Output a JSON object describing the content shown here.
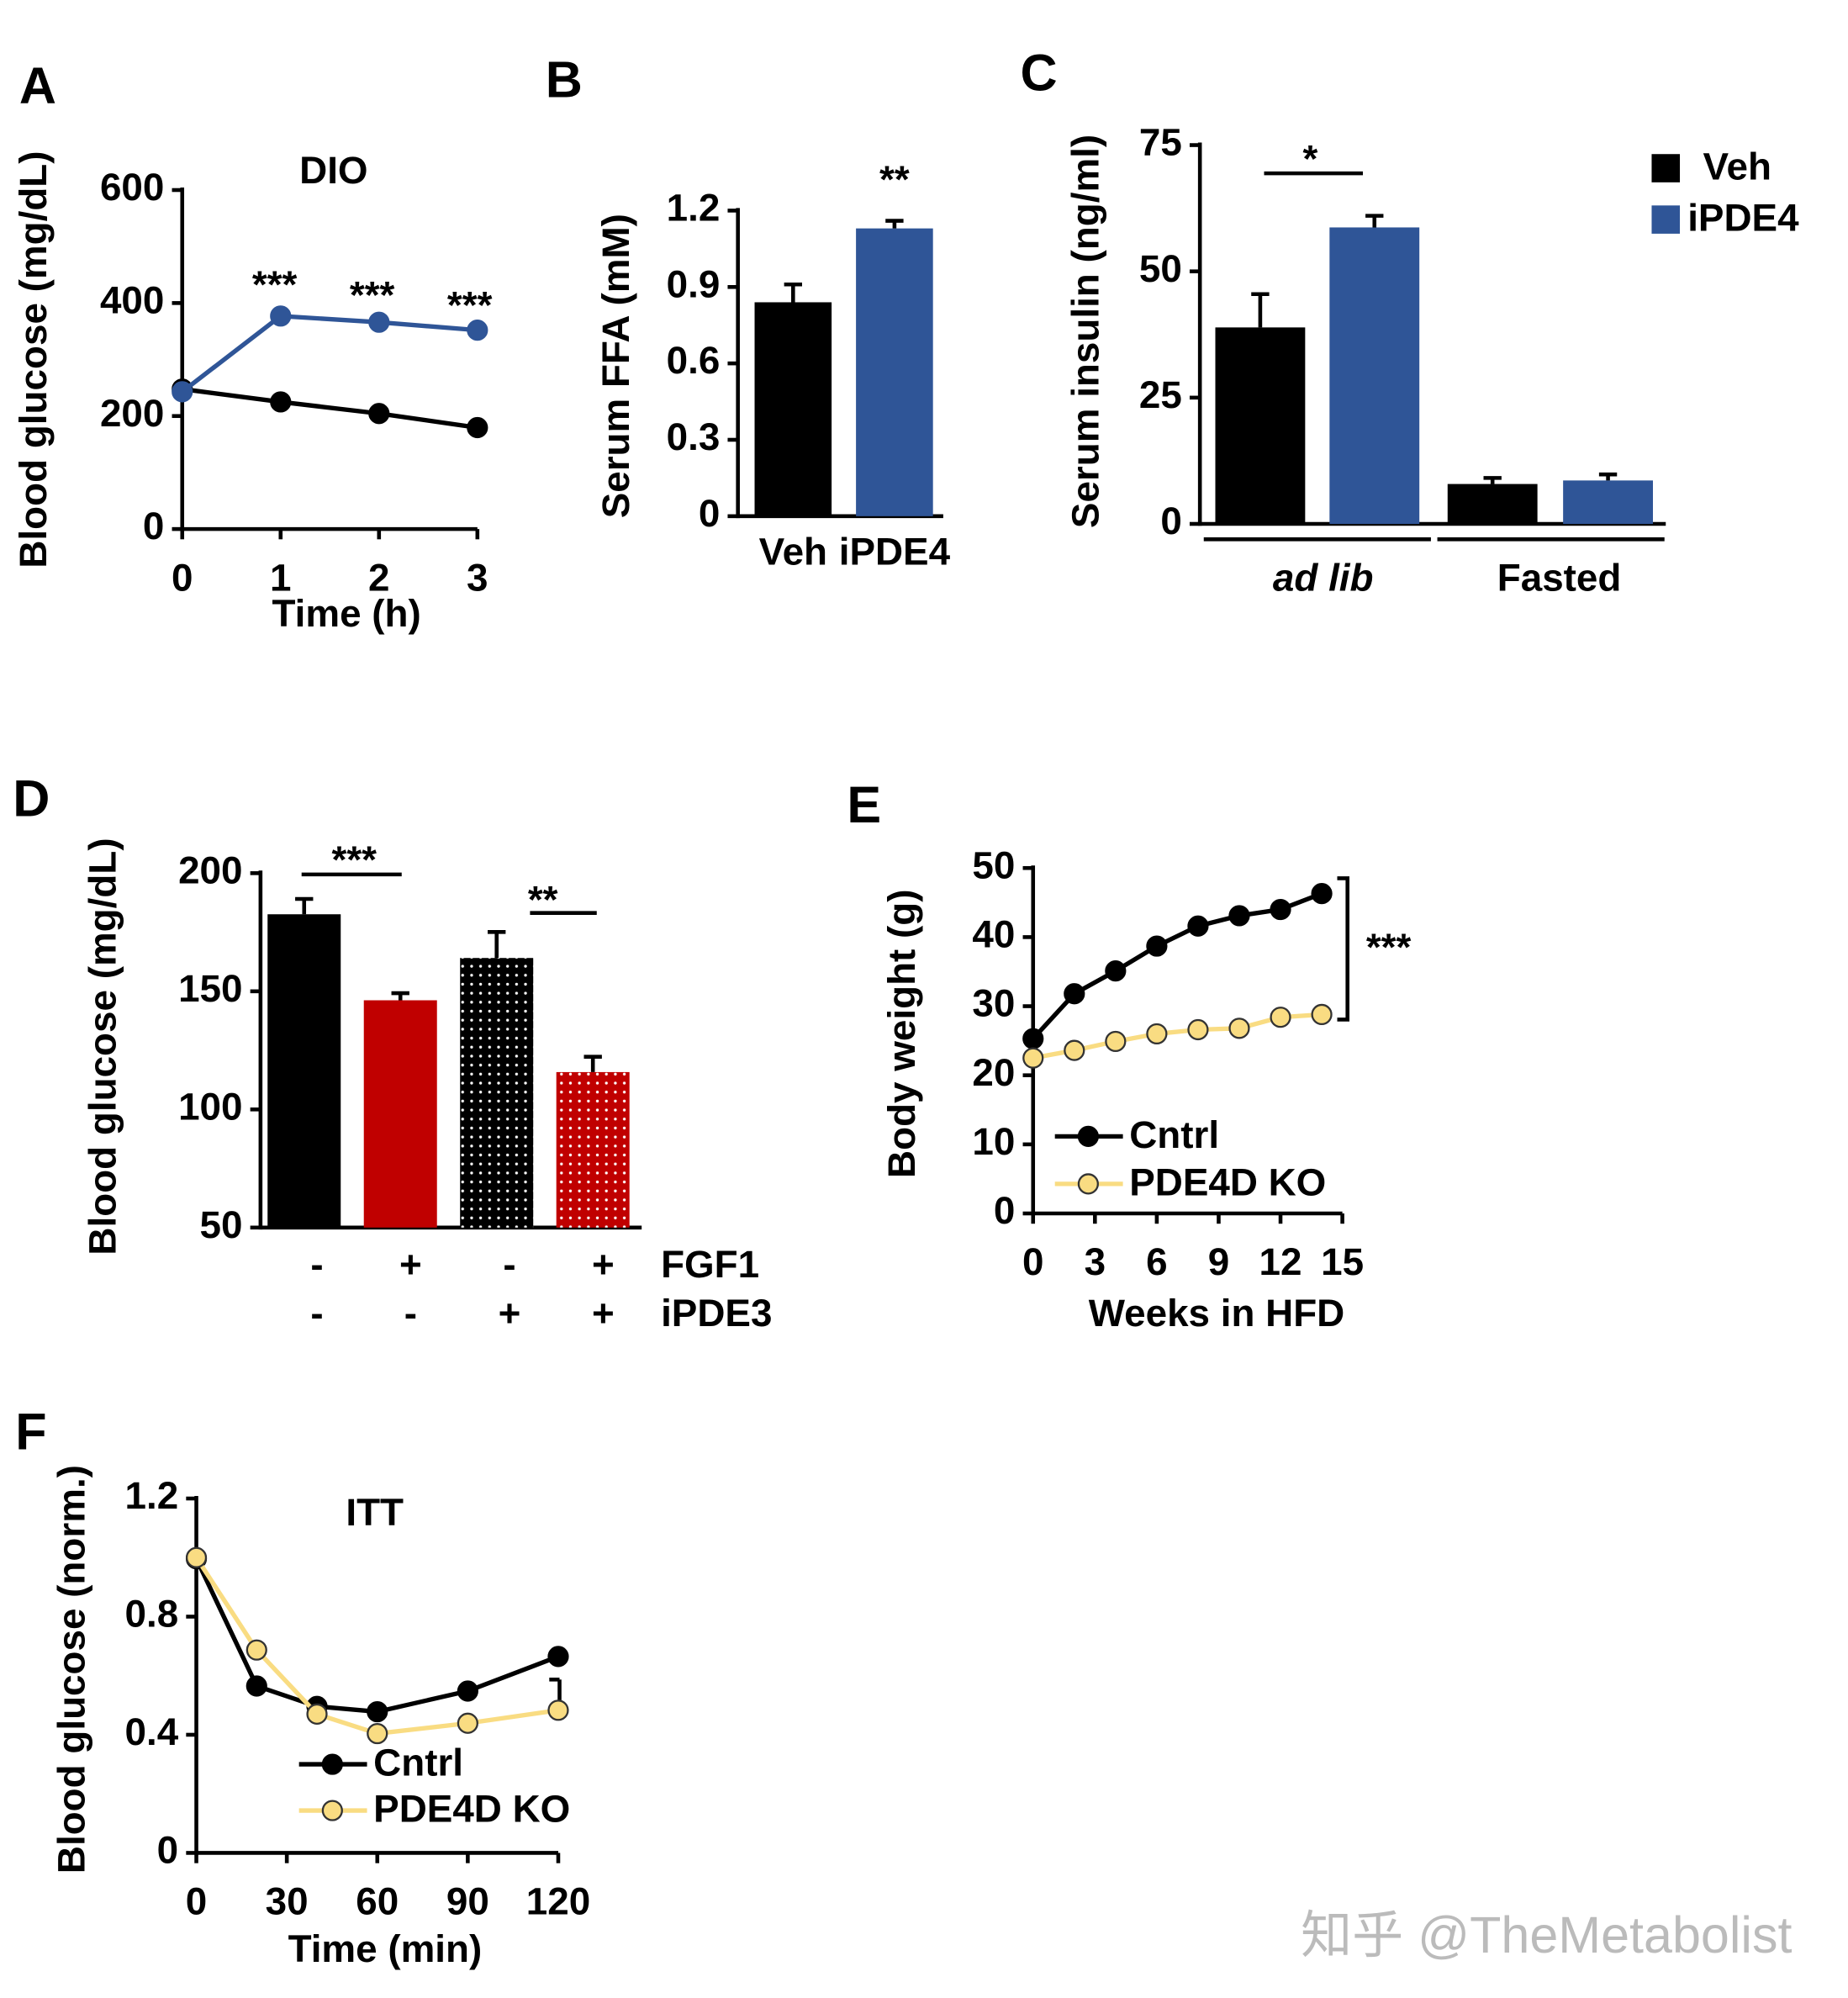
{
  "chart_data": [
    {
      "panel": "A",
      "type": "line",
      "title": "DIO",
      "y_label": "Blood glucose (mg/dL)",
      "x_label": "Time (h)",
      "x": [
        0,
        1,
        2,
        3
      ],
      "series": [
        {
          "color": "#000000",
          "values": [
            247.7,
            225,
            204.5,
            179.5
          ]
        },
        {
          "color": "#2f5597",
          "values": [
            243,
            377,
            366,
            352
          ]
        }
      ],
      "xlim": [
        0,
        3
      ],
      "xticks": [
        0,
        1,
        2,
        3
      ],
      "ylim": [
        0,
        600
      ],
      "yticks": [
        0,
        200,
        400,
        600
      ],
      "annotations": [
        "***",
        "***",
        "***"
      ]
    },
    {
      "panel": "B",
      "type": "bar",
      "y_label": "Serum FFA (mM)",
      "categories": [
        "Veh",
        "iPDE4"
      ],
      "values": [
        0.84,
        1.13
      ],
      "errors": [
        0.07,
        0.03
      ],
      "colors": [
        "#000000",
        "#2f5597"
      ],
      "ylim": [
        0,
        1.2
      ],
      "yticks": [
        0,
        0.3,
        0.6,
        0.9,
        1.2
      ],
      "annotations": [
        "**"
      ]
    },
    {
      "panel": "C",
      "type": "bar",
      "y_label": "Serum insulin (ng/ml)",
      "categories": [
        "ad lib",
        "Fasted"
      ],
      "series": [
        {
          "name": "Veh",
          "color": "#000000",
          "values": [
            38.9,
            7.9
          ],
          "errors": [
            6.6,
            1.2
          ]
        },
        {
          "name": "iPDE4",
          "color": "#2f5597",
          "values": [
            58.7,
            8.6
          ],
          "errors": [
            2.3,
            1.2
          ]
        }
      ],
      "ylim": [
        0,
        75
      ],
      "yticks": [
        0,
        25,
        50,
        75
      ],
      "legend": "upper right",
      "annotations": [
        "*"
      ]
    },
    {
      "panel": "D",
      "type": "bar",
      "y_label": "Blood glucose (mg/dL)",
      "values": [
        182.6,
        146.2,
        164.1,
        115.8
      ],
      "errors": [
        6.5,
        3,
        11,
        6.5
      ],
      "colors": [
        "#000000",
        "#c00000",
        "#000000",
        "#c00000"
      ],
      "dotted": [
        false,
        false,
        true,
        true
      ],
      "conditions": [
        {
          "name": "FGF1",
          "signs": [
            "-",
            "+",
            "-",
            "+"
          ]
        },
        {
          "name": "iPDE3",
          "signs": [
            "-",
            "-",
            "+",
            "+"
          ]
        }
      ],
      "ylim": [
        50,
        200
      ],
      "yticks": [
        50,
        100,
        150,
        200
      ],
      "annotations": [
        "***",
        "**"
      ]
    },
    {
      "panel": "E",
      "type": "line",
      "y_label": "Body weight (g)",
      "x_label": "Weeks in HFD",
      "x": [
        0,
        2,
        4,
        6,
        8,
        10,
        12,
        14
      ],
      "series": [
        {
          "name": "Cntrl",
          "color": "#000000",
          "values": [
            25.3,
            31.8,
            35.1,
            38.7,
            41.6,
            43.1,
            44,
            46.3
          ]
        },
        {
          "name": "PDE4D KO",
          "color": "#f9dc82",
          "values": [
            22.5,
            23.6,
            24.9,
            26,
            26.6,
            26.8,
            28.4,
            28.8
          ]
        }
      ],
      "xlim": [
        0,
        15
      ],
      "xticks": [
        0,
        3,
        6,
        9,
        12,
        15
      ],
      "ylim": [
        0,
        50
      ],
      "yticks": [
        0,
        10,
        20,
        30,
        40,
        50
      ],
      "legend": "lower left",
      "annotations": [
        "***"
      ]
    },
    {
      "panel": "F",
      "type": "line",
      "title": "ITT",
      "y_label": "Blood glucose (norm.)",
      "x_label": "Time (min)",
      "x": [
        0,
        20,
        40,
        60,
        90,
        120
      ],
      "series": [
        {
          "name": "Cntrl",
          "color": "#000000",
          "values": [
            0.996,
            0.565,
            0.496,
            0.478,
            0.548,
            0.665
          ]
        },
        {
          "name": "PDE4D KO",
          "color": "#f9dc82",
          "values": [
            1.0,
            0.687,
            0.47,
            0.404,
            0.439,
            0.483
          ]
        }
      ],
      "xlim": [
        0,
        120
      ],
      "xticks": [
        0,
        30,
        60,
        90,
        120
      ],
      "ylim": [
        0,
        1.2
      ],
      "yticks": [
        0,
        0.4,
        0.8,
        1.2
      ],
      "legend": "lower left"
    }
  ],
  "watermark": "知乎 @TheMetabolist"
}
